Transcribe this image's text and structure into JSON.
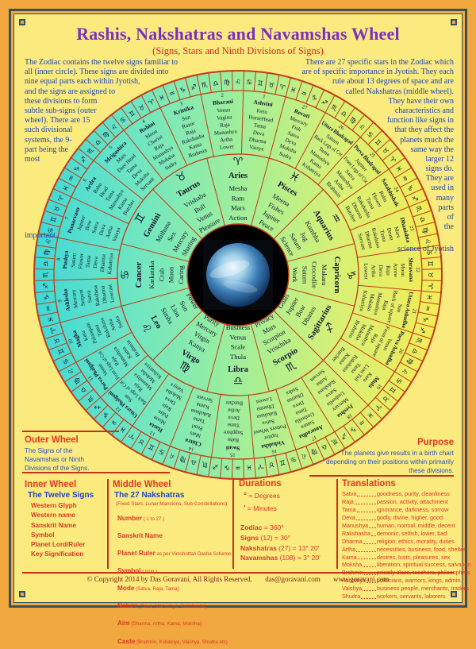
{
  "header": {
    "title": "Rashis, Nakshatras and Navamshas Wheel",
    "subtitle": "(Signs, Stars and Ninth Divisions of Signs)"
  },
  "intro": {
    "left": "The Zodiac contains the twelve signs familiar to all (inner circle). These signs are divided into nine equal parts each within Jyotish, and the signs are assigned to these divisions to form subtle sub-signs (outer wheel). There are 15 such divisional systems, the 9-part being the most important.",
    "right": "There are 27 specific stars in the Zodiac which are of specific importance in Jyotish. They each rule about 13 degrees of space and are called Nakshatras (middle wheel). They have their own characteristics and function like signs in that they affect the planets much the same way the larger 12 signs do. They are used in many parts of the science of Jyotish"
  },
  "wheel": {
    "colors": {
      "gradient": [
        "#3ED8D8",
        "#6FE6C2",
        "#9FEF9A",
        "#D8F074",
        "#F4EC55"
      ],
      "stroke": "#C23B17",
      "text": "#14142E",
      "center": "#000000"
    },
    "signs": [
      {
        "glyph": "♈",
        "name": "Aries",
        "attrs": [
          "Mesha",
          "Ram",
          "Mars",
          "Action"
        ]
      },
      {
        "glyph": "♉",
        "name": "Taurus",
        "attrs": [
          "Vrishaba",
          "Bull",
          "Venus",
          "Pleasure"
        ]
      },
      {
        "glyph": "♊",
        "name": "Gemini",
        "attrs": [
          "Mithuna",
          "Sex",
          "Mercury",
          "Sharing"
        ]
      },
      {
        "glyph": "♋",
        "name": "Cancer",
        "attrs": [
          "Karkataka",
          "Crab",
          "Moon",
          "Caring"
        ]
      },
      {
        "glyph": "♌",
        "name": "Leo",
        "attrs": [
          "Simha",
          "Lion",
          "Sun",
          "Power"
        ]
      },
      {
        "glyph": "♍",
        "name": "Virgo",
        "attrs": [
          "Kanya",
          "Virgin",
          "Mercury",
          "Purity"
        ]
      },
      {
        "glyph": "♎",
        "name": "Libra",
        "attrs": [
          "Thula",
          "Scale",
          "Venus",
          "Business"
        ]
      },
      {
        "glyph": "♏",
        "name": "Scorpio",
        "attrs": [
          "Vrischika",
          "Scorpion",
          "Mars",
          "Privacy"
        ]
      },
      {
        "glyph": "♐",
        "name": "Sagittarius",
        "attrs": [
          "Dhanus",
          "Bow",
          "Jupiter",
          "Goals"
        ]
      },
      {
        "glyph": "♑",
        "name": "Capricorn",
        "attrs": [
          "Makara",
          "Crocodile",
          "Saturn",
          "Work"
        ]
      },
      {
        "glyph": "♒",
        "name": "Aquarius",
        "attrs": [
          "Kumbha",
          "Jug",
          "Saturn",
          "Science"
        ]
      },
      {
        "glyph": "♓",
        "name": "Pisces",
        "attrs": [
          "Meena",
          "Fishes",
          "Jupiter",
          "Peace"
        ]
      }
    ],
    "nakshatras": [
      {
        "num": 1,
        "name": "Ashvini",
        "attrs": [
          "Ketu",
          "HorseHead",
          "Tama",
          "Deva",
          "Dharma",
          "Vaisya"
        ]
      },
      {
        "num": 2,
        "name": "Bharani",
        "attrs": [
          "Venus",
          "Vagina",
          "Raja",
          "Manushya",
          "Artha",
          "Lower"
        ]
      },
      {
        "num": 3,
        "name": "Krittika",
        "attrs": [
          "Sun",
          "Razor",
          "Raja",
          "Rakshasha",
          "Kama",
          "Brahmin"
        ]
      },
      {
        "num": 4,
        "name": "Rohini",
        "attrs": [
          "Moon",
          "Chariot",
          "Raja",
          "Manushya",
          "Moksha",
          "Sudra"
        ]
      },
      {
        "num": 5,
        "name": "Mrigashira",
        "attrs": [
          "Mars",
          "Deer Head",
          "Tama",
          "Deva",
          "Moksha",
          "Servant"
        ]
      },
      {
        "num": 6,
        "name": "Ardra",
        "attrs": [
          "Rahu",
          "Head",
          "Tama",
          "Manushya",
          "Kama",
          "Butcher"
        ]
      },
      {
        "num": 7,
        "name": "Punarvasu",
        "attrs": [
          "Jupiter",
          "Bow",
          "Satva",
          "Deva",
          "Artha",
          "Vaisya"
        ]
      },
      {
        "num": 8,
        "name": "Pushya",
        "attrs": [
          "Saturn",
          "Flower",
          "Tama",
          "Deva",
          "Dharma",
          "Kshatriya"
        ]
      },
      {
        "num": 9,
        "name": "Ashlesha",
        "attrs": [
          "Mercury",
          "Serpent",
          "Satva",
          "Rakshasa",
          "Dharma",
          "Lowcast"
        ]
      },
      {
        "num": 10,
        "name": "Magha",
        "attrs": [
          "Ketu",
          "Palanquin",
          "Tama",
          "Rakshasa",
          "Artha",
          "Sudra"
        ]
      },
      {
        "num": 11,
        "name": "Purva Phalguni",
        "attrs": [
          "Venus",
          "Front Legs of Cot",
          "Raja",
          "Manushya",
          "Kama",
          "Brahmin"
        ]
      },
      {
        "num": 12,
        "name": "Uttara Phalguni",
        "attrs": [
          "Sun",
          "Back Legs of Cot",
          "Raja",
          "Manushya",
          "Moksha",
          "Kshatriya"
        ]
      },
      {
        "num": 13,
        "name": "Hasta",
        "attrs": [
          "Moon",
          "Palm",
          "Raja",
          "Deva",
          "Moksha",
          "Vaisya"
        ]
      },
      {
        "num": 14,
        "name": "Chitra",
        "attrs": [
          "Mars",
          "Pearl",
          "Tama",
          "Rakshasa",
          "Kama",
          "Servant"
        ]
      },
      {
        "num": 15,
        "name": "Swati",
        "attrs": [
          "Rahu",
          "Sapphire",
          "Tama",
          "Deva",
          "Artha",
          "Butcher"
        ]
      },
      {
        "num": 16,
        "name": "Vishakha",
        "attrs": [
          "Jupiter",
          "Potters Wheel",
          "Satva",
          "Rakshasa",
          "Dharma",
          "Lowest"
        ]
      },
      {
        "num": 17,
        "name": "Anuradha",
        "attrs": [
          "Saturn",
          "Umbrella",
          "Tama",
          "Deva",
          "Dharma",
          "Sudra"
        ]
      },
      {
        "num": 18,
        "name": "Jyeshta",
        "attrs": [
          "Mercury",
          "Umbrella",
          "Satva",
          "Rakshasa",
          "Artha",
          "Servant"
        ]
      },
      {
        "num": 19,
        "name": "Mula",
        "attrs": [
          "Ketu",
          "Lion Tail",
          "Tama",
          "Rakshasa",
          "Kama",
          "Butcher"
        ]
      },
      {
        "num": 20,
        "name": "Purva Ashadha",
        "attrs": [
          "Venus",
          "Front of square",
          "Raja",
          "Manushya",
          "Moksha",
          "Brahmin"
        ]
      },
      {
        "num": 21,
        "name": "Uttara Ashadha",
        "attrs": [
          "Sun",
          "Back of square",
          "Raja",
          "Manushya",
          "Moksha",
          "Kshatriya"
        ]
      },
      {
        "num": 22,
        "name": "Shravana",
        "attrs": [
          "Moon",
          "Arrow",
          "Raja",
          "Deva",
          "Artha",
          "Lowest"
        ]
      },
      {
        "num": 23,
        "name": "Dhanishta",
        "attrs": [
          "Mars",
          "Drum",
          "Tama",
          "Rakshasa",
          "Dharma",
          "Servant"
        ]
      },
      {
        "num": 24,
        "name": "Satabhishak",
        "attrs": [
          "Rahu",
          "Flower",
          "Tama",
          "Rakshasha",
          "Dharma",
          "Butcher"
        ]
      },
      {
        "num": 25,
        "name": "Purva Bhadrapad",
        "attrs": [
          "Jupiter",
          "Front Legs of Cot",
          "Satva",
          "Manushya",
          "Artha",
          "Brahmin"
        ]
      },
      {
        "num": 26,
        "name": "Uttara Bhadrapad",
        "attrs": [
          "Saturn",
          "Back Legs of Cot",
          "Tama",
          "Manushya",
          "Kama",
          "Kshatriya"
        ]
      },
      {
        "num": 27,
        "name": "Revati",
        "attrs": [
          "Mercury",
          "Fish",
          "Satva",
          "Deva",
          "Moksha",
          "Sudra"
        ]
      }
    ]
  },
  "sections": {
    "outer_wheel": {
      "title": "Outer Wheel",
      "body": "The Signs of the Navamshas or Ninth Divisions of the Signs."
    },
    "purpose": {
      "title": "Purpose",
      "body": "The planets give results in a birth chart depending on their positions within primarily these divisions."
    },
    "inner_wheel": {
      "title": "Inner Wheel",
      "subtitle": "The Twelve Signs",
      "items": [
        "Western Glyph",
        "Western name",
        "Sanskrit Name",
        "Symbol",
        "Planet Lord/Ruler",
        "Key Signification"
      ]
    },
    "middle_wheel": {
      "title": "Middle Wheel",
      "subtitle": "The 27 Nakshatras",
      "note": "(Fixed Stars, Lunar Mansions, Sub Constellations)",
      "items": [
        {
          "term": "Number",
          "note": "( 1 to 27 )"
        },
        {
          "term": "Sanskrit Name",
          "note": ""
        },
        {
          "term": "Planet Ruler",
          "note": "as per Vimshottari Dasha Scheme"
        },
        {
          "term": "Symbol",
          "note": "( icon )"
        },
        {
          "term": "Mode",
          "note": "(Satva, Raja, Tama)"
        },
        {
          "term": "Nature",
          "note": "(Deva, Manushya, Rakshasha)"
        },
        {
          "term": "Aim",
          "note": "(Dharma, Artha, Kama, Moksha)"
        },
        {
          "term": "Caste",
          "note": "(Brahmin, Kshatriya, Vaishya, Shudra etc)"
        }
      ]
    },
    "durations": {
      "title": "Durations",
      "legend": [
        {
          "sym": "°",
          "rest": "= Degrees"
        },
        {
          "sym": "'",
          "rest": "= Minutes"
        }
      ],
      "rows": [
        {
          "label": "Zodiac",
          "rest": "= 360°"
        },
        {
          "label": "Signs",
          "rest": "(12) = 30°"
        },
        {
          "label": "Nakshatras",
          "rest": "(27) = 13° 20'"
        },
        {
          "label": "Navamshas",
          "rest": "(108) = 3° 20'"
        }
      ]
    },
    "translations": {
      "title": "Translations",
      "rows": [
        {
          "term": "Satva",
          "def": "goodness, purity, cleanliness"
        },
        {
          "term": "Raja",
          "def": "passion, activity, attachment"
        },
        {
          "term": "Tama",
          "def": "ignorance, darkness, sorrow"
        },
        {
          "term": "Deva",
          "def": "godly, divine, higher, good"
        },
        {
          "term": "Manushya",
          "def": "human, normal, middle, decent"
        },
        {
          "term": "Rakshasha",
          "def": "demonic, selfish, lower, bad"
        },
        {
          "term": "Dharma",
          "def": "religion, ethics, morality, duties"
        },
        {
          "term": "Artha",
          "def": "necessities, business, food, shelter"
        },
        {
          "term": "Kama",
          "def": "desires, lusts, pleasures, sex"
        },
        {
          "term": "Moksha",
          "def": "liberation, spiritual success, salvation"
        },
        {
          "term": "Brahmin",
          "def": "priestly class, teachers, philosophers"
        },
        {
          "term": "Kshatriya",
          "def": "politicians, warriors, kings, admin."
        },
        {
          "term": "Vaishya",
          "def": "business people, merchants, traders"
        },
        {
          "term": "Shudra",
          "def": "workers, servants, laborers"
        }
      ]
    }
  },
  "footer": {
    "copyright": "© Copyright 2014 by Das Goravani, All Rights Reserved.",
    "email": "das@goravani.com",
    "website": "www.goravani.com"
  }
}
